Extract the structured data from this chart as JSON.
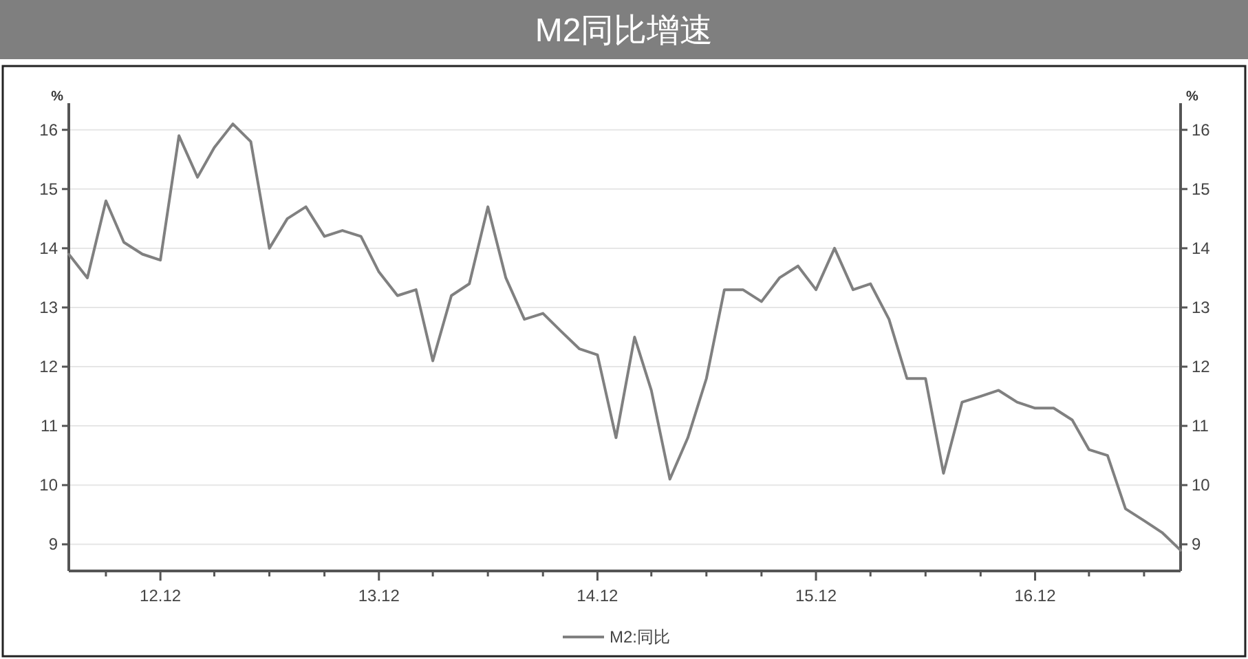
{
  "chart_data": {
    "type": "line",
    "title": "M2同比增速",
    "ylabel": "%",
    "y2label": "%",
    "x": [
      "2012-07",
      "2012-08",
      "2012-09",
      "2012-10",
      "2012-11",
      "2012-12",
      "2013-01",
      "2013-02",
      "2013-03",
      "2013-04",
      "2013-05",
      "2013-06",
      "2013-07",
      "2013-08",
      "2013-09",
      "2013-10",
      "2013-11",
      "2013-12",
      "2014-01",
      "2014-02",
      "2014-03",
      "2014-04",
      "2014-05",
      "2014-06",
      "2014-07",
      "2014-08",
      "2014-09",
      "2014-10",
      "2014-11",
      "2014-12",
      "2015-01",
      "2015-02",
      "2015-03",
      "2015-04",
      "2015-05",
      "2015-06",
      "2015-07",
      "2015-08",
      "2015-09",
      "2015-10",
      "2015-11",
      "2015-12",
      "2016-01",
      "2016-02",
      "2016-03",
      "2016-04",
      "2016-05",
      "2016-06",
      "2016-07",
      "2016-08",
      "2016-09",
      "2016-10",
      "2016-11",
      "2016-12",
      "2017-01",
      "2017-02",
      "2017-03",
      "2017-04",
      "2017-05",
      "2017-06",
      "2017-07",
      "2017-08"
    ],
    "series": [
      {
        "name": "M2:同比",
        "color": "#808080",
        "values": [
          13.9,
          13.5,
          14.8,
          14.1,
          13.9,
          13.8,
          15.9,
          15.2,
          15.7,
          16.1,
          15.8,
          14.0,
          14.5,
          14.7,
          14.2,
          14.3,
          14.2,
          13.6,
          13.2,
          13.3,
          12.1,
          13.2,
          13.4,
          14.7,
          13.5,
          12.8,
          12.9,
          12.6,
          12.3,
          12.2,
          10.8,
          12.5,
          11.6,
          10.1,
          10.8,
          11.8,
          13.3,
          13.3,
          13.1,
          13.5,
          13.7,
          13.3,
          14.0,
          13.3,
          13.4,
          12.8,
          11.8,
          11.8,
          10.2,
          11.4,
          11.5,
          11.6,
          11.4,
          11.3,
          11.3,
          11.1,
          10.6,
          10.5,
          9.6,
          9.4,
          9.2,
          8.9
        ]
      }
    ],
    "xlim": [
      "2012-07",
      "2017-08"
    ],
    "xticks": [
      {
        "value": "2012-09",
        "label": null
      },
      {
        "value": "2012-12",
        "label": "12.12"
      },
      {
        "value": "2013-03",
        "label": null
      },
      {
        "value": "2013-06",
        "label": null
      },
      {
        "value": "2013-09",
        "label": null
      },
      {
        "value": "2013-12",
        "label": "13.12"
      },
      {
        "value": "2014-03",
        "label": null
      },
      {
        "value": "2014-06",
        "label": null
      },
      {
        "value": "2014-09",
        "label": null
      },
      {
        "value": "2014-12",
        "label": "14.12"
      },
      {
        "value": "2015-03",
        "label": null
      },
      {
        "value": "2015-06",
        "label": null
      },
      {
        "value": "2015-09",
        "label": null
      },
      {
        "value": "2015-12",
        "label": "15.12"
      },
      {
        "value": "2016-03",
        "label": null
      },
      {
        "value": "2016-06",
        "label": null
      },
      {
        "value": "2016-09",
        "label": null
      },
      {
        "value": "2016-12",
        "label": "16.12"
      },
      {
        "value": "2017-03",
        "label": null
      },
      {
        "value": "2017-06",
        "label": null
      }
    ],
    "ylim": [
      8.55,
      16.45
    ],
    "yticks": [
      9,
      10,
      11,
      12,
      13,
      14,
      15,
      16
    ],
    "y2lim": [
      8.55,
      16.45
    ],
    "y2ticks": [
      9,
      10,
      11,
      12,
      13,
      14,
      15,
      16
    ],
    "grid": "y",
    "legend": "bottom",
    "line_style": "solid",
    "marker": "none"
  }
}
